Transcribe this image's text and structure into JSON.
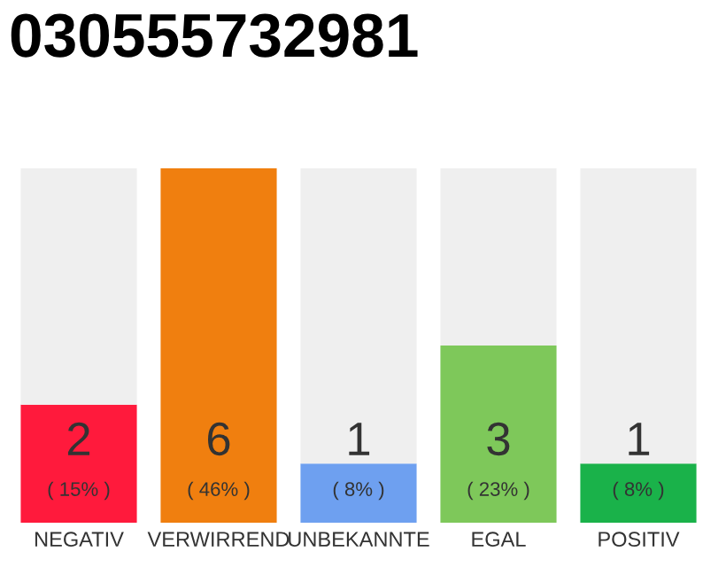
{
  "chart_data": {
    "type": "bar",
    "title": "030555732981",
    "categories": [
      "NEGATIV",
      "VERWIRREND",
      "UNBEKANNTE",
      "EGAL",
      "POSITIV"
    ],
    "stacked": true,
    "series": [
      {
        "values": [
          2,
          6,
          1,
          3,
          1
        ],
        "colors": [
          "#ff1a3c",
          "#f07f0f",
          "#6ea0f0",
          "#7ec85a",
          "#1ab24a"
        ],
        "value_labels": [
          "2\n( 15% )",
          "6\n( 46% )",
          "1\n( 8% )",
          "3\n( 23% )",
          "1\n( 8% )"
        ]
      },
      {
        "values": [
          4,
          0,
          5,
          3,
          5
        ],
        "color": "#efefef",
        "value_labels": [
          null,
          null,
          null,
          null,
          null
        ]
      }
    ],
    "ylim": [
      0,
      6
    ],
    "tick_labels": "x",
    "grid": false,
    "legend": false
  }
}
